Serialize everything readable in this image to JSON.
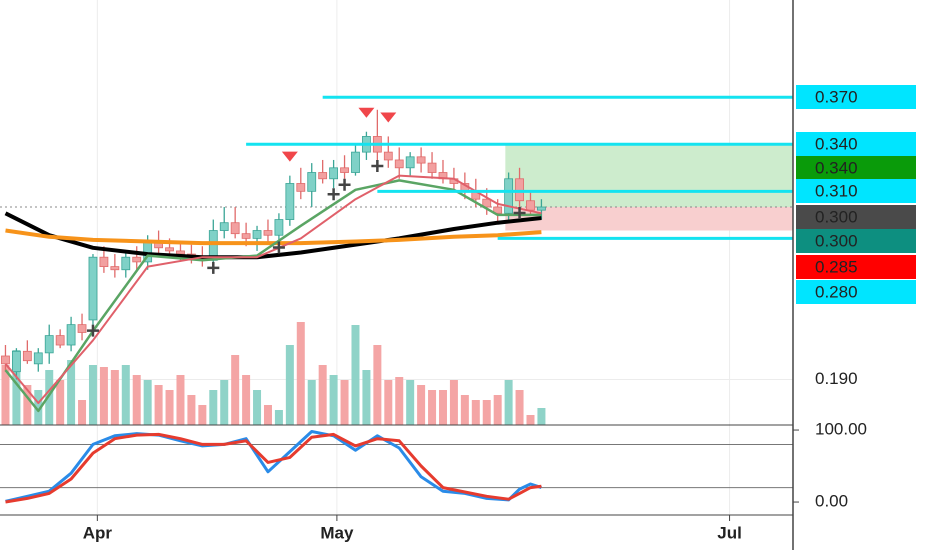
{
  "chart_data": [
    {
      "type": "candlestick",
      "x": [
        0,
        1,
        2,
        3,
        4,
        5,
        6,
        7,
        8,
        9,
        10,
        11,
        12,
        13,
        14,
        15,
        16,
        17,
        18,
        19,
        20,
        21,
        22,
        23,
        24,
        25,
        26,
        27,
        28,
        29,
        30,
        31,
        32,
        33,
        34,
        35,
        36,
        37,
        38,
        39,
        40,
        41,
        42,
        43,
        44,
        45,
        46,
        47,
        48,
        49
      ],
      "open": [
        0.205,
        0.195,
        0.208,
        0.2,
        0.207,
        0.218,
        0.212,
        0.225,
        0.228,
        0.268,
        0.262,
        0.26,
        0.268,
        0.265,
        0.278,
        0.274,
        0.272,
        0.27,
        0.268,
        0.266,
        0.285,
        0.29,
        0.283,
        0.28,
        0.285,
        0.282,
        0.292,
        0.315,
        0.31,
        0.322,
        0.318,
        0.325,
        0.322,
        0.335,
        0.345,
        0.335,
        0.33,
        0.325,
        0.332,
        0.328,
        0.322,
        0.318,
        0.315,
        0.31,
        0.305,
        0.3,
        0.296,
        0.318,
        0.304,
        0.298
      ],
      "high": [
        0.212,
        0.21,
        0.215,
        0.21,
        0.225,
        0.222,
        0.23,
        0.232,
        0.27,
        0.275,
        0.27,
        0.272,
        0.275,
        0.282,
        0.285,
        0.28,
        0.278,
        0.276,
        0.275,
        0.292,
        0.3,
        0.3,
        0.29,
        0.288,
        0.292,
        0.296,
        0.32,
        0.325,
        0.328,
        0.33,
        0.33,
        0.333,
        0.34,
        0.348,
        0.362,
        0.345,
        0.338,
        0.335,
        0.338,
        0.335,
        0.33,
        0.325,
        0.322,
        0.318,
        0.312,
        0.305,
        0.322,
        0.325,
        0.31,
        0.305
      ],
      "low": [
        0.195,
        0.19,
        0.2,
        0.195,
        0.2,
        0.21,
        0.208,
        0.215,
        0.225,
        0.258,
        0.255,
        0.255,
        0.26,
        0.26,
        0.27,
        0.268,
        0.265,
        0.264,
        0.262,
        0.265,
        0.28,
        0.28,
        0.275,
        0.272,
        0.278,
        0.278,
        0.288,
        0.305,
        0.3,
        0.315,
        0.312,
        0.318,
        0.32,
        0.33,
        0.33,
        0.325,
        0.318,
        0.32,
        0.322,
        0.318,
        0.315,
        0.31,
        0.305,
        0.3,
        0.295,
        0.29,
        0.292,
        0.3,
        0.295,
        0.292
      ],
      "close": [
        0.2,
        0.208,
        0.202,
        0.207,
        0.218,
        0.212,
        0.225,
        0.22,
        0.268,
        0.262,
        0.26,
        0.268,
        0.265,
        0.278,
        0.274,
        0.272,
        0.27,
        0.268,
        0.266,
        0.285,
        0.29,
        0.283,
        0.28,
        0.285,
        0.282,
        0.292,
        0.315,
        0.31,
        0.322,
        0.318,
        0.325,
        0.322,
        0.335,
        0.345,
        0.335,
        0.33,
        0.325,
        0.332,
        0.328,
        0.322,
        0.318,
        0.315,
        0.31,
        0.305,
        0.3,
        0.296,
        0.318,
        0.304,
        0.298,
        0.3
      ],
      "up_color": "#7fd1c7",
      "down_color": "#f2a0a0",
      "xlim": [
        -0.5,
        72
      ],
      "xticks": [
        {
          "value": 8.4,
          "label": "Apr"
        },
        {
          "value": 30.3,
          "label": "May"
        },
        {
          "value": 66.2,
          "label": "Jul"
        }
      ],
      "ylim": [
        0.161,
        0.432
      ],
      "yticks": [
        {
          "value": 0.19,
          "label": "0.190"
        }
      ],
      "series": [
        {
          "color": "#000000",
          "width": 4,
          "x": [
            0,
            4,
            8,
            13,
            18,
            23,
            27,
            32,
            36,
            41,
            45,
            49
          ],
          "values": [
            0.296,
            0.282,
            0.274,
            0.27,
            0.268,
            0.268,
            0.271,
            0.276,
            0.28,
            0.286,
            0.29,
            0.293
          ]
        },
        {
          "color": "#f7931a",
          "width": 4,
          "x": [
            0,
            4,
            8,
            13,
            18,
            23,
            27,
            32,
            36,
            41,
            45,
            49
          ],
          "values": [
            0.285,
            0.281,
            0.279,
            0.278,
            0.277,
            0.277,
            0.277,
            0.278,
            0.279,
            0.281,
            0.282,
            0.284
          ]
        },
        {
          "color": "#5aa564",
          "width": 2.5,
          "x": [
            0,
            3,
            8,
            13,
            18,
            23,
            27,
            32,
            36,
            41,
            45,
            49
          ],
          "values": [
            0.196,
            0.17,
            0.221,
            0.269,
            0.266,
            0.269,
            0.288,
            0.311,
            0.317,
            0.311,
            0.295,
            0.295
          ]
        },
        {
          "color": "#e0606a",
          "width": 2,
          "x": [
            0,
            3,
            8,
            13,
            18,
            23,
            27,
            32,
            36,
            41,
            45,
            49
          ],
          "values": [
            0.2,
            0.175,
            0.215,
            0.262,
            0.268,
            0.268,
            0.28,
            0.305,
            0.32,
            0.318,
            0.302,
            0.296
          ]
        }
      ],
      "levels": [
        {
          "value": 0.37,
          "from": 29
        },
        {
          "value": 0.34,
          "from": 22
        },
        {
          "value": 0.31,
          "from": 34
        },
        {
          "value": 0.28,
          "from": 45
        }
      ],
      "price_labels": [
        {
          "value": 0.37,
          "label": "0.370",
          "color": "#00e5ff"
        },
        {
          "value": 0.34,
          "label": "0.340",
          "color": "#00e5ff"
        },
        {
          "value": 0.34,
          "label": "0.340",
          "color": "#0a9b0a"
        },
        {
          "value": 0.31,
          "label": "0.310",
          "color": "#00e5ff"
        },
        {
          "value": 0.3,
          "label": "0.300",
          "color": "#4a4a4a"
        },
        {
          "value": 0.3,
          "label": "0.300",
          "color": "#0d8f80"
        },
        {
          "value": 0.285,
          "label": "0.285",
          "color": "#ff0000"
        },
        {
          "value": 0.28,
          "label": "0.280",
          "color": "#00e5ff"
        }
      ]
    },
    {
      "type": "bar",
      "values": [
        60,
        75,
        40,
        35,
        55,
        45,
        65,
        25,
        60,
        58,
        55,
        60,
        50,
        45,
        40,
        35,
        50,
        30,
        20,
        35,
        45,
        70,
        50,
        35,
        20,
        15,
        80,
        103,
        45,
        60,
        50,
        45,
        100,
        55,
        80,
        45,
        48,
        45,
        40,
        35,
        35,
        45,
        30,
        25,
        25,
        30,
        45,
        35,
        10,
        17
      ],
      "ylim": [
        0,
        115
      ]
    },
    {
      "type": "line",
      "ylim": [
        -18,
        107
      ],
      "yticks": [
        {
          "value": 100,
          "label": "100.00"
        },
        {
          "value": 0,
          "label": "0.00"
        }
      ],
      "levels": [
        80,
        20
      ],
      "series": [
        {
          "color": "#2a8be8",
          "x": [
            0,
            2,
            4,
            6,
            8,
            10,
            12,
            14,
            16,
            18,
            20,
            22,
            24,
            26,
            28,
            30,
            32,
            34,
            36,
            38,
            40,
            42,
            44,
            46,
            47,
            48,
            49
          ],
          "values": [
            1,
            8,
            15,
            40,
            80,
            92,
            95,
            93,
            85,
            78,
            80,
            88,
            42,
            70,
            98,
            92,
            72,
            92,
            75,
            35,
            15,
            12,
            5,
            3,
            18,
            25,
            20
          ]
        },
        {
          "color": "#e63b2e",
          "x": [
            0,
            2,
            4,
            6,
            8,
            10,
            12,
            14,
            16,
            18,
            20,
            22,
            24,
            26,
            28,
            30,
            32,
            34,
            36,
            38,
            40,
            42,
            44,
            46,
            47,
            48,
            49
          ],
          "values": [
            0,
            5,
            12,
            32,
            68,
            88,
            93,
            94,
            88,
            80,
            80,
            85,
            55,
            62,
            90,
            94,
            78,
            88,
            85,
            50,
            20,
            14,
            8,
            4,
            12,
            20,
            22
          ]
        }
      ]
    }
  ]
}
